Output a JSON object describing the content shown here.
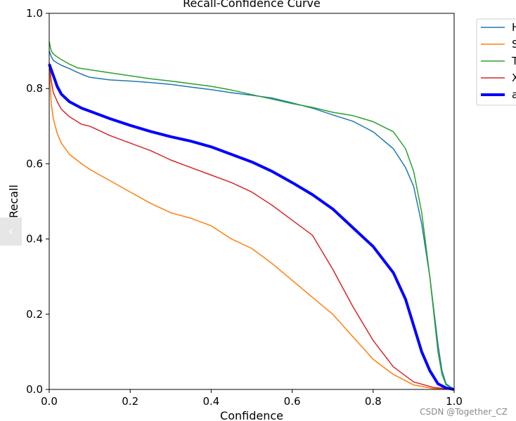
{
  "chart_data": {
    "type": "line",
    "title": "Recall-Confidence Curve",
    "xlabel": "Confidence",
    "ylabel": "Recall",
    "xlim": [
      0.0,
      1.0
    ],
    "ylim": [
      0.0,
      1.0
    ],
    "xticks": [
      "0.0",
      "0.2",
      "0.4",
      "0.6",
      "0.8",
      "1.0"
    ],
    "yticks": [
      "0.0",
      "0.2",
      "0.4",
      "0.6",
      "0.8",
      "1.0"
    ],
    "grid": false,
    "legend_position": "outside top-right (partially cut off)",
    "series": [
      {
        "name": "H",
        "color": "#1f77b4",
        "width": 1.5,
        "points": [
          [
            0.0,
            0.9
          ],
          [
            0.005,
            0.885
          ],
          [
            0.01,
            0.875
          ],
          [
            0.02,
            0.868
          ],
          [
            0.03,
            0.862
          ],
          [
            0.05,
            0.853
          ],
          [
            0.07,
            0.843
          ],
          [
            0.09,
            0.834
          ],
          [
            0.1,
            0.83
          ],
          [
            0.15,
            0.823
          ],
          [
            0.2,
            0.82
          ],
          [
            0.25,
            0.816
          ],
          [
            0.3,
            0.811
          ],
          [
            0.35,
            0.804
          ],
          [
            0.4,
            0.797
          ],
          [
            0.45,
            0.789
          ],
          [
            0.5,
            0.782
          ],
          [
            0.55,
            0.775
          ],
          [
            0.6,
            0.762
          ],
          [
            0.65,
            0.748
          ],
          [
            0.7,
            0.73
          ],
          [
            0.75,
            0.713
          ],
          [
            0.8,
            0.685
          ],
          [
            0.85,
            0.64
          ],
          [
            0.88,
            0.59
          ],
          [
            0.9,
            0.54
          ],
          [
            0.92,
            0.44
          ],
          [
            0.94,
            0.3
          ],
          [
            0.96,
            0.12
          ],
          [
            0.97,
            0.05
          ],
          [
            0.98,
            0.015
          ],
          [
            1.0,
            0.0
          ]
        ]
      },
      {
        "name": "S",
        "color": "#ff7f0e",
        "width": 1.5,
        "points": [
          [
            0.0,
            0.86
          ],
          [
            0.005,
            0.76
          ],
          [
            0.01,
            0.72
          ],
          [
            0.02,
            0.68
          ],
          [
            0.03,
            0.655
          ],
          [
            0.05,
            0.625
          ],
          [
            0.08,
            0.6
          ],
          [
            0.1,
            0.585
          ],
          [
            0.15,
            0.555
          ],
          [
            0.2,
            0.525
          ],
          [
            0.25,
            0.495
          ],
          [
            0.3,
            0.47
          ],
          [
            0.35,
            0.455
          ],
          [
            0.4,
            0.435
          ],
          [
            0.45,
            0.4
          ],
          [
            0.5,
            0.375
          ],
          [
            0.55,
            0.335
          ],
          [
            0.6,
            0.29
          ],
          [
            0.65,
            0.245
          ],
          [
            0.7,
            0.2
          ],
          [
            0.75,
            0.14
          ],
          [
            0.8,
            0.08
          ],
          [
            0.85,
            0.04
          ],
          [
            0.9,
            0.012
          ],
          [
            0.95,
            0.002
          ],
          [
            1.0,
            0.0
          ]
        ]
      },
      {
        "name": "T",
        "color": "#2ca02c",
        "width": 1.5,
        "points": [
          [
            0.0,
            0.925
          ],
          [
            0.005,
            0.9
          ],
          [
            0.01,
            0.892
          ],
          [
            0.02,
            0.884
          ],
          [
            0.03,
            0.877
          ],
          [
            0.05,
            0.865
          ],
          [
            0.07,
            0.855
          ],
          [
            0.1,
            0.85
          ],
          [
            0.15,
            0.842
          ],
          [
            0.2,
            0.834
          ],
          [
            0.25,
            0.826
          ],
          [
            0.3,
            0.82
          ],
          [
            0.35,
            0.813
          ],
          [
            0.4,
            0.806
          ],
          [
            0.45,
            0.796
          ],
          [
            0.5,
            0.784
          ],
          [
            0.55,
            0.772
          ],
          [
            0.6,
            0.76
          ],
          [
            0.65,
            0.75
          ],
          [
            0.7,
            0.737
          ],
          [
            0.75,
            0.728
          ],
          [
            0.8,
            0.712
          ],
          [
            0.85,
            0.685
          ],
          [
            0.88,
            0.64
          ],
          [
            0.9,
            0.58
          ],
          [
            0.92,
            0.47
          ],
          [
            0.94,
            0.3
          ],
          [
            0.96,
            0.1
          ],
          [
            0.97,
            0.04
          ],
          [
            0.98,
            0.012
          ],
          [
            1.0,
            0.0
          ]
        ]
      },
      {
        "name": "X",
        "color": "#d62728",
        "width": 1.5,
        "points": [
          [
            0.0,
            0.87
          ],
          [
            0.005,
            0.82
          ],
          [
            0.01,
            0.79
          ],
          [
            0.02,
            0.765
          ],
          [
            0.03,
            0.745
          ],
          [
            0.05,
            0.725
          ],
          [
            0.08,
            0.705
          ],
          [
            0.1,
            0.7
          ],
          [
            0.15,
            0.675
          ],
          [
            0.2,
            0.655
          ],
          [
            0.25,
            0.635
          ],
          [
            0.3,
            0.61
          ],
          [
            0.35,
            0.59
          ],
          [
            0.4,
            0.57
          ],
          [
            0.45,
            0.55
          ],
          [
            0.5,
            0.525
          ],
          [
            0.55,
            0.49
          ],
          [
            0.6,
            0.45
          ],
          [
            0.65,
            0.41
          ],
          [
            0.7,
            0.32
          ],
          [
            0.75,
            0.22
          ],
          [
            0.8,
            0.13
          ],
          [
            0.85,
            0.06
          ],
          [
            0.9,
            0.02
          ],
          [
            0.95,
            0.005
          ],
          [
            1.0,
            0.0
          ]
        ]
      },
      {
        "name": "a",
        "color": "#0000ff",
        "width": 4,
        "points": [
          [
            0.0,
            0.865
          ],
          [
            0.01,
            0.835
          ],
          [
            0.02,
            0.805
          ],
          [
            0.03,
            0.785
          ],
          [
            0.05,
            0.765
          ],
          [
            0.08,
            0.748
          ],
          [
            0.1,
            0.74
          ],
          [
            0.15,
            0.72
          ],
          [
            0.2,
            0.702
          ],
          [
            0.25,
            0.686
          ],
          [
            0.3,
            0.672
          ],
          [
            0.35,
            0.66
          ],
          [
            0.4,
            0.645
          ],
          [
            0.45,
            0.625
          ],
          [
            0.5,
            0.605
          ],
          [
            0.55,
            0.58
          ],
          [
            0.6,
            0.55
          ],
          [
            0.65,
            0.518
          ],
          [
            0.7,
            0.48
          ],
          [
            0.75,
            0.43
          ],
          [
            0.8,
            0.38
          ],
          [
            0.85,
            0.31
          ],
          [
            0.88,
            0.24
          ],
          [
            0.9,
            0.17
          ],
          [
            0.92,
            0.1
          ],
          [
            0.94,
            0.05
          ],
          [
            0.96,
            0.015
          ],
          [
            0.98,
            0.004
          ],
          [
            1.0,
            0.0
          ]
        ]
      }
    ]
  },
  "ui": {
    "nav_tab_glyph": "‹",
    "watermark": "CSDN @Together_CZ"
  }
}
